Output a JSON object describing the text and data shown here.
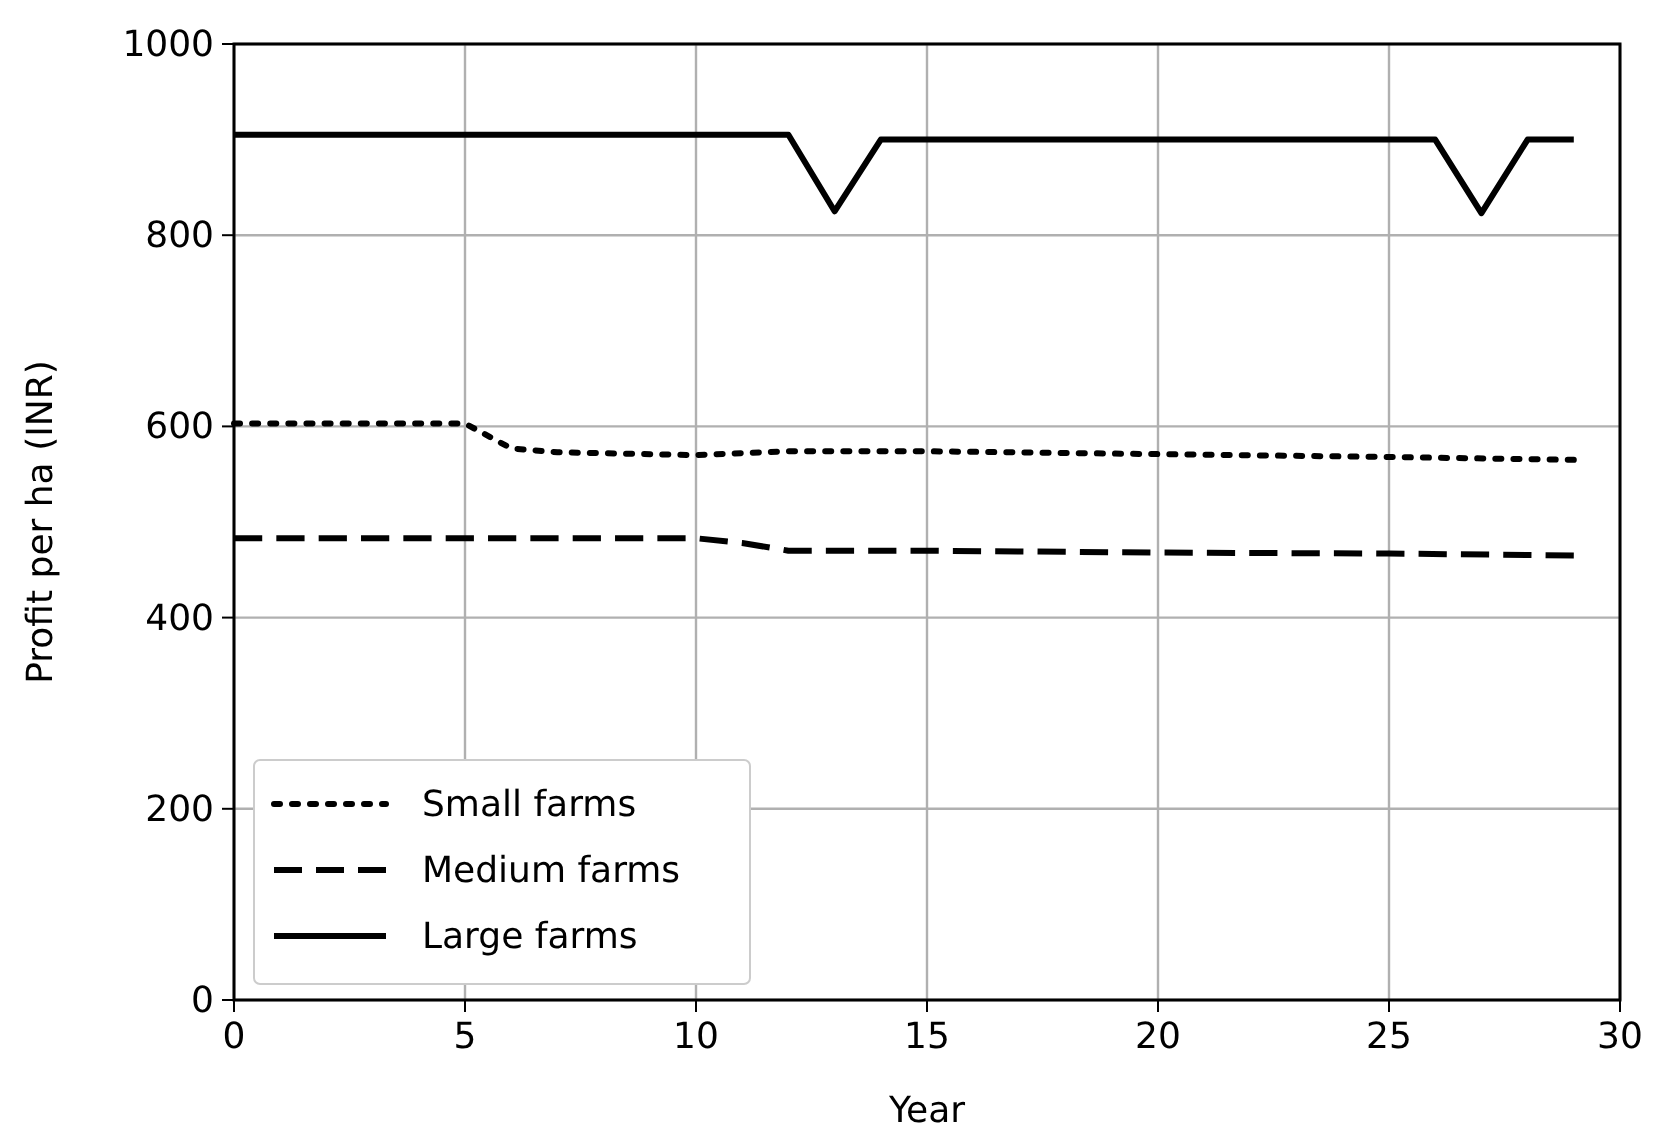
{
  "chart_data": {
    "type": "line",
    "xlabel": "Year",
    "ylabel": "Profit per ha (INR)",
    "xlim": [
      0,
      30
    ],
    "ylim": [
      0,
      1000
    ],
    "xticks": [
      0,
      5,
      10,
      15,
      20,
      25,
      30
    ],
    "yticks": [
      0,
      200,
      400,
      600,
      800,
      1000
    ],
    "grid": true,
    "legend": "bottom left",
    "series": [
      {
        "name": "Small farms",
        "color": "#000000",
        "line_style": "dotted",
        "x": [
          0,
          5,
          6,
          7,
          10,
          12,
          15,
          20,
          25,
          29
        ],
        "values": [
          603,
          603,
          577,
          573,
          570,
          574,
          574,
          571,
          568,
          565
        ]
      },
      {
        "name": "Medium farms",
        "color": "#000000",
        "line_style": "dashed",
        "x": [
          0,
          10,
          11,
          12,
          15,
          20,
          25,
          29
        ],
        "values": [
          483,
          483,
          478,
          470,
          470,
          468,
          467,
          465
        ]
      },
      {
        "name": "Large farms",
        "color": "#000000",
        "line_style": "solid",
        "x": [
          0,
          12,
          13,
          14,
          26,
          27,
          28,
          29
        ],
        "values": [
          905,
          905,
          825,
          900,
          900,
          823,
          900,
          900
        ]
      }
    ]
  }
}
